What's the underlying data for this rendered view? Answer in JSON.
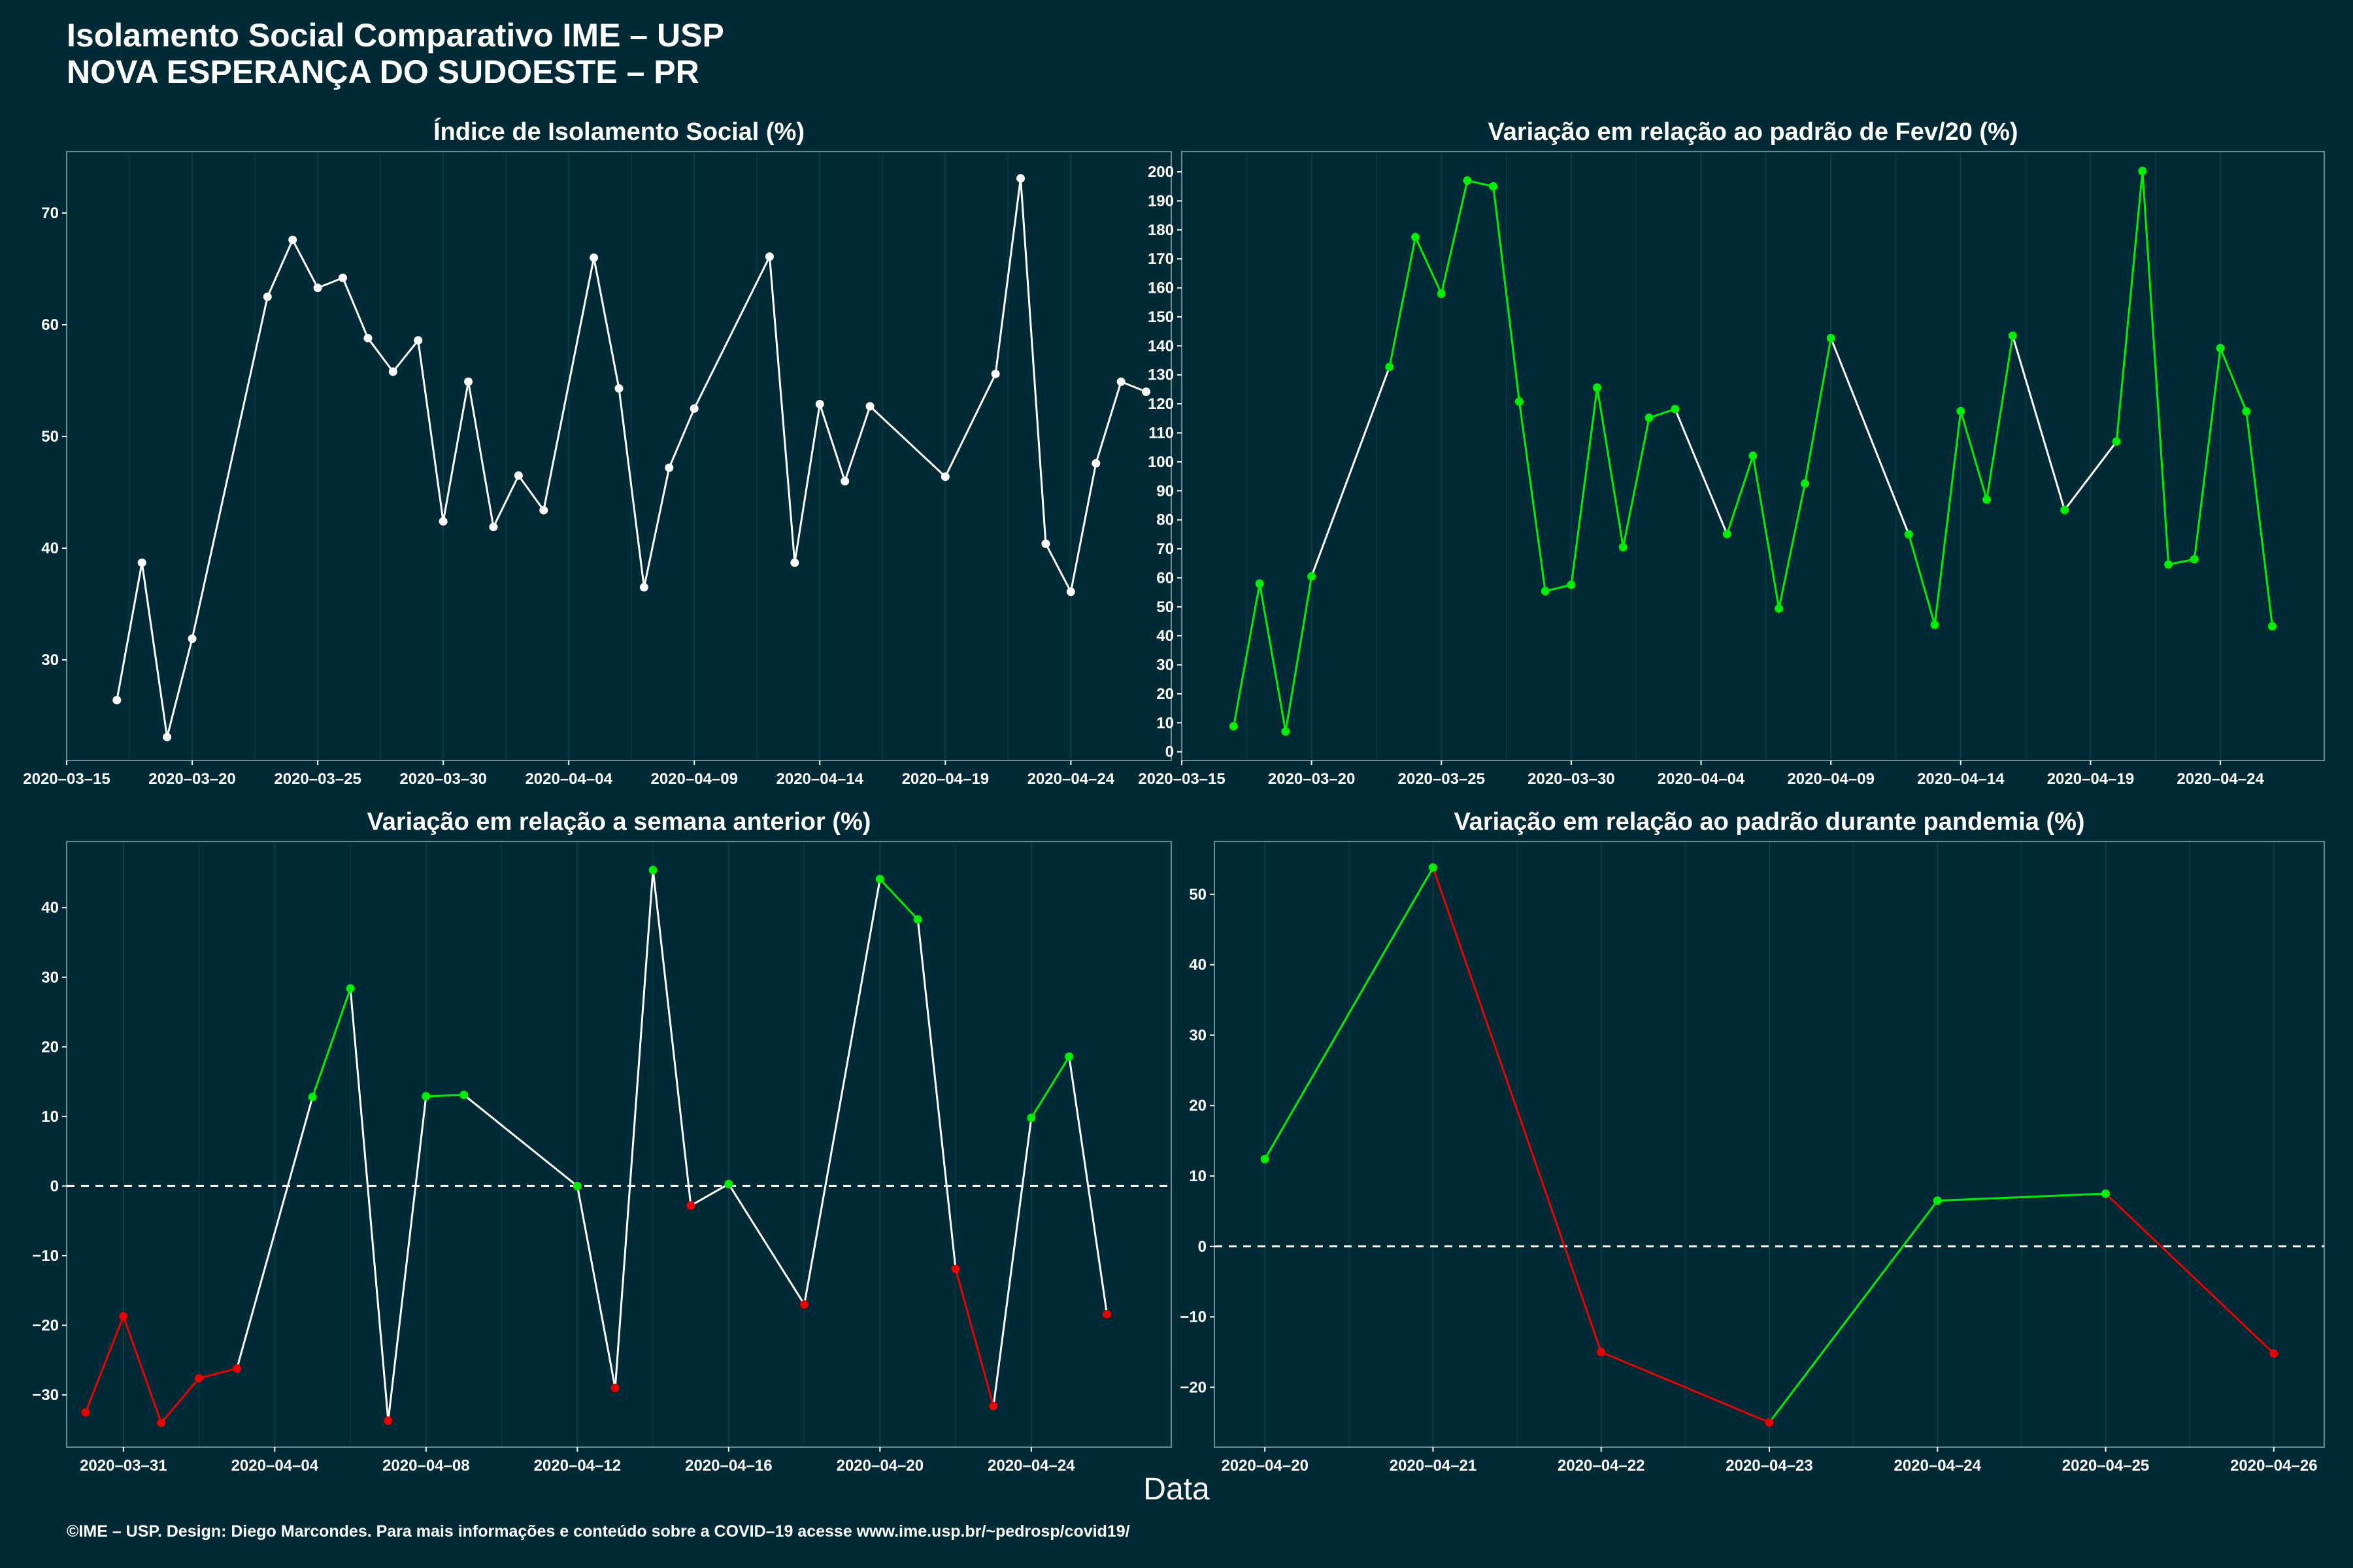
{
  "title_line1": "Isolamento Social Comparativo IME – USP",
  "title_line2": "NOVA ESPERANÇA DO SUDOESTE – PR",
  "xlabel": "Data",
  "footer": "©IME – USP. Design: Diego Marcondes. Para mais informações e conteúdo sobre a COVID–19 acesse www.ime.usp.br/~pedrosp/covid19/",
  "colors": {
    "background": "#002b36",
    "up": "#00ee00",
    "down": "#ee0000",
    "neutral": "#ffffff",
    "grid": "#0e3c44",
    "zero": "#ffffff"
  },
  "chart_data": [
    {
      "id": "isolation",
      "type": "line",
      "title": "Índice de Isolamento Social (%)",
      "xlim": [
        "2020-03-15",
        "2020-04-28"
      ],
      "ylim": [
        21,
        75.5
      ],
      "xticks": [
        "2020-03-15",
        "2020-03-20",
        "2020-03-25",
        "2020-03-30",
        "2020-04-04",
        "2020-04-09",
        "2020-04-14",
        "2020-04-19",
        "2020-04-24"
      ],
      "yticks": [
        30,
        40,
        50,
        60,
        70
      ],
      "color_mode": "white",
      "points": [
        [
          "2020-03-17",
          26.4
        ],
        [
          "2020-03-18",
          38.7
        ],
        [
          "2020-03-19",
          23.1
        ],
        [
          "2020-03-20",
          31.9
        ],
        [
          "2020-03-23",
          62.5
        ],
        [
          "2020-03-24",
          67.6
        ],
        [
          "2020-03-25",
          63.3
        ],
        [
          "2020-03-26",
          64.2
        ],
        [
          "2020-03-27",
          58.8
        ],
        [
          "2020-03-28",
          55.8
        ],
        [
          "2020-03-29",
          58.6
        ],
        [
          "2020-03-30",
          42.4
        ],
        [
          "2020-03-31",
          54.9
        ],
        [
          "2020-04-01",
          41.9
        ],
        [
          "2020-04-02",
          46.5
        ],
        [
          "2020-04-03",
          43.4
        ],
        [
          "2020-04-05",
          66.0
        ],
        [
          "2020-04-06",
          54.3
        ],
        [
          "2020-04-07",
          36.5
        ],
        [
          "2020-04-08",
          47.2
        ],
        [
          "2020-04-09",
          52.5
        ],
        [
          "2020-04-12",
          66.1
        ],
        [
          "2020-04-13",
          38.7
        ],
        [
          "2020-04-14",
          52.9
        ],
        [
          "2020-04-15",
          46.0
        ],
        [
          "2020-04-16",
          52.7
        ],
        [
          "2020-04-19",
          46.4
        ],
        [
          "2020-04-21",
          55.6
        ],
        [
          "2020-04-22",
          73.1
        ],
        [
          "2020-04-23",
          40.4
        ],
        [
          "2020-04-24",
          36.1
        ],
        [
          "2020-04-25",
          47.6
        ],
        [
          "2020-04-26",
          54.9
        ],
        [
          "2020-04-27",
          54.0
        ]
      ]
    },
    {
      "id": "feb-variation",
      "type": "line",
      "title": "Variação em relação ao padrão de Fev/20 (%)",
      "xlim": [
        "2020-03-15",
        "2020-04-28"
      ],
      "ylim": [
        -3,
        207
      ],
      "xticks": [
        "2020-03-15",
        "2020-03-20",
        "2020-03-25",
        "2020-03-30",
        "2020-04-04",
        "2020-04-09",
        "2020-04-14",
        "2020-04-19",
        "2020-04-24"
      ],
      "yticks": [
        0,
        10,
        20,
        30,
        40,
        50,
        60,
        70,
        80,
        90,
        100,
        110,
        120,
        130,
        140,
        150,
        160,
        170,
        180,
        190,
        200
      ],
      "color_mode": "green-consecutive",
      "points": [
        [
          "2020-03-17",
          8.8
        ],
        [
          "2020-03-18",
          58.0
        ],
        [
          "2020-03-19",
          7.0
        ],
        [
          "2020-03-20",
          60.5
        ],
        [
          "2020-03-23",
          132.7
        ],
        [
          "2020-03-24",
          177.5
        ],
        [
          "2020-03-25",
          158.0
        ],
        [
          "2020-03-26",
          197.0
        ],
        [
          "2020-03-27",
          195.0
        ],
        [
          "2020-03-28",
          120.8
        ],
        [
          "2020-03-29",
          55.4
        ],
        [
          "2020-03-30",
          57.6
        ],
        [
          "2020-03-31",
          125.6
        ],
        [
          "2020-04-01",
          70.6
        ],
        [
          "2020-04-02",
          115.2
        ],
        [
          "2020-04-03",
          118.2
        ],
        [
          "2020-04-05",
          75.1
        ],
        [
          "2020-04-06",
          102.1
        ],
        [
          "2020-04-07",
          49.4
        ],
        [
          "2020-04-08",
          92.5
        ],
        [
          "2020-04-09",
          142.7
        ],
        [
          "2020-04-12",
          75.0
        ],
        [
          "2020-04-13",
          43.8
        ],
        [
          "2020-04-14",
          117.5
        ],
        [
          "2020-04-15",
          87.0
        ],
        [
          "2020-04-16",
          143.5
        ],
        [
          "2020-04-18",
          83.4
        ],
        [
          "2020-04-20",
          107.0
        ],
        [
          "2020-04-21",
          200.3
        ],
        [
          "2020-04-22",
          64.6
        ],
        [
          "2020-04-23",
          66.4
        ],
        [
          "2020-04-24",
          139.2
        ],
        [
          "2020-04-25",
          117.4
        ],
        [
          "2020-04-26",
          43.3
        ]
      ]
    },
    {
      "id": "week-variation",
      "type": "line",
      "title": "Variação em relação a semana anterior (%)",
      "xlim": [
        "2020-03-29.5",
        "2020-04-27.7"
      ],
      "ylim": [
        -37.5,
        49.5
      ],
      "xticks": [
        "2020-03-31",
        "2020-04-04",
        "2020-04-08",
        "2020-04-12",
        "2020-04-16",
        "2020-04-20",
        "2020-04-24"
      ],
      "yticks": [
        -30,
        -20,
        -10,
        0,
        10,
        20,
        30,
        40
      ],
      "zero_line": true,
      "color_mode": "sign",
      "points": [
        [
          "2020-03-30",
          -32.5
        ],
        [
          "2020-03-31",
          -18.7
        ],
        [
          "2020-04-01",
          -34.0
        ],
        [
          "2020-04-02",
          -27.6
        ],
        [
          "2020-04-03",
          -26.2
        ],
        [
          "2020-04-05",
          12.8
        ],
        [
          "2020-04-06",
          28.4
        ],
        [
          "2020-04-07",
          -33.7
        ],
        [
          "2020-04-08",
          12.9
        ],
        [
          "2020-04-09",
          13.1
        ],
        [
          "2020-04-12",
          0.0
        ],
        [
          "2020-04-13",
          -29.0
        ],
        [
          "2020-04-14",
          45.4
        ],
        [
          "2020-04-15",
          -2.8
        ],
        [
          "2020-04-16",
          0.3
        ],
        [
          "2020-04-18",
          -17.0
        ],
        [
          "2020-04-20",
          44.1
        ],
        [
          "2020-04-21",
          38.3
        ],
        [
          "2020-04-22",
          -11.9
        ],
        [
          "2020-04-23",
          -31.6
        ],
        [
          "2020-04-24",
          9.8
        ],
        [
          "2020-04-25",
          18.6
        ],
        [
          "2020-04-26",
          -18.4
        ]
      ]
    },
    {
      "id": "pandemic-variation",
      "type": "line",
      "title": "Variação em relação ao padrão durante pandemia (%)",
      "xlim": [
        "2020-04-19.7",
        "2020-04-26.3"
      ],
      "ylim": [
        -28.5,
        57.5
      ],
      "xticks": [
        "2020-04-20",
        "2020-04-21",
        "2020-04-22",
        "2020-04-23",
        "2020-04-24",
        "2020-04-25",
        "2020-04-26"
      ],
      "yticks": [
        -20,
        -10,
        0,
        10,
        20,
        30,
        40,
        50
      ],
      "zero_line": true,
      "color_mode": "slope",
      "points": [
        [
          "2020-04-20",
          12.4
        ],
        [
          "2020-04-21",
          53.8
        ],
        [
          "2020-04-22",
          -15.0
        ],
        [
          "2020-04-23",
          -25.0
        ],
        [
          "2020-04-24",
          6.5
        ],
        [
          "2020-04-25",
          7.5
        ],
        [
          "2020-04-26",
          -15.2
        ]
      ]
    }
  ]
}
